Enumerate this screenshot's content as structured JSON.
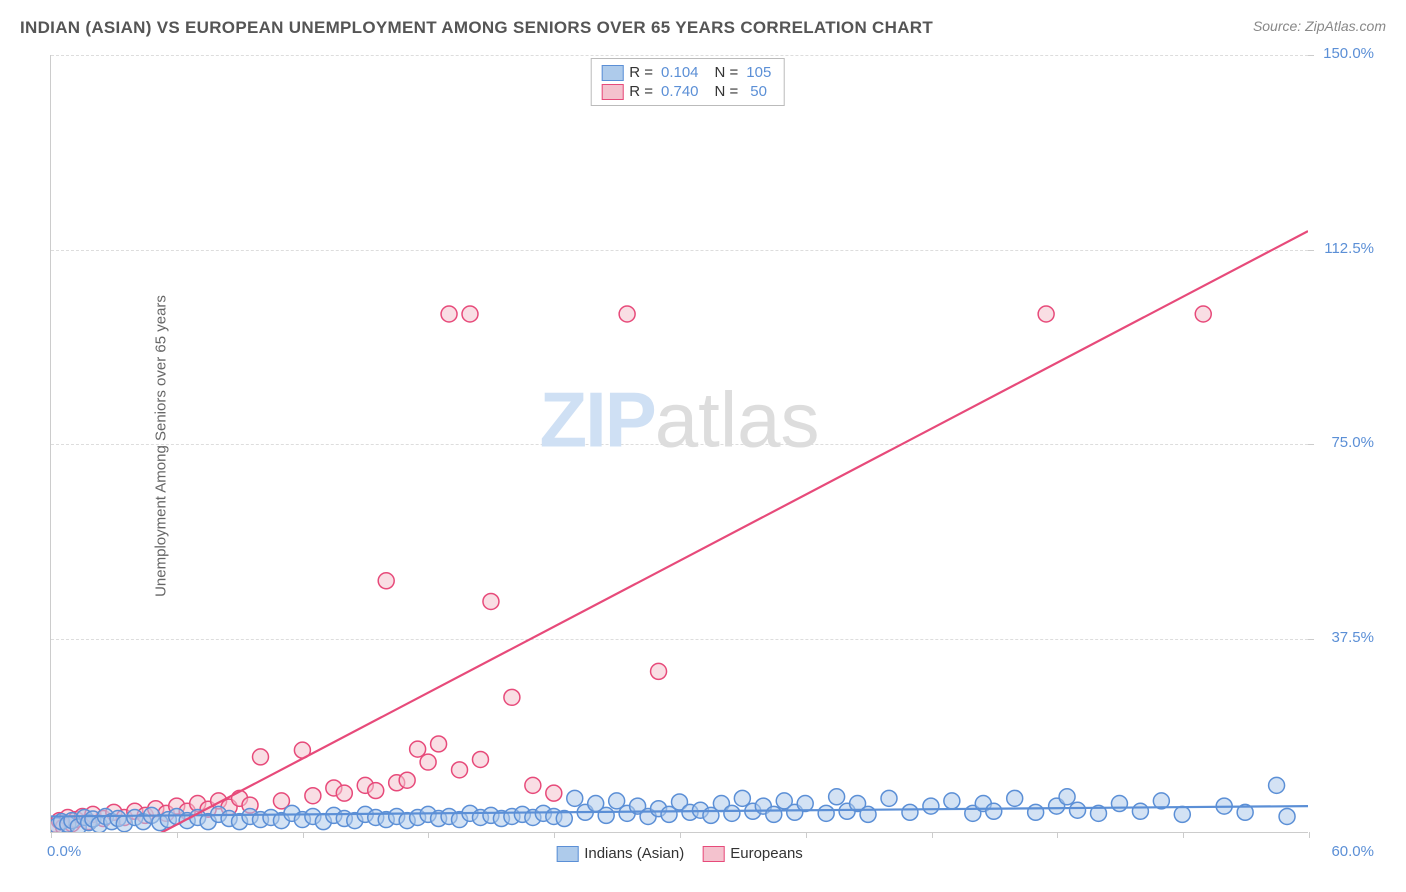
{
  "title": "INDIAN (ASIAN) VS EUROPEAN UNEMPLOYMENT AMONG SENIORS OVER 65 YEARS CORRELATION CHART",
  "source": "Source: ZipAtlas.com",
  "y_axis_label": "Unemployment Among Seniors over 65 years",
  "watermark_bold": "ZIP",
  "watermark_light": "atlas",
  "chart": {
    "type": "scatter",
    "xlim": [
      0,
      60
    ],
    "ylim": [
      0,
      150
    ],
    "x_ticks": [
      0,
      6,
      12,
      18,
      24,
      30,
      36,
      42,
      48,
      54,
      60
    ],
    "x_tick_labels": {
      "0": "0.0%",
      "60": "60.0%"
    },
    "y_ticks": [
      37.5,
      75,
      112.5,
      150
    ],
    "y_tick_labels": {
      "37.5": "37.5%",
      "75": "75.0%",
      "112.5": "112.5%",
      "150": "150.0%"
    },
    "gridlines_y": [
      37.5,
      75.0,
      112.5,
      150.0
    ],
    "background_color": "#ffffff",
    "grid_color": "#dddddd",
    "axis_color": "#cccccc",
    "marker_radius": 8,
    "marker_stroke_width": 1.5,
    "trend_stroke_width": 2.2,
    "series": [
      {
        "name": "Indians (Asian)",
        "fill": "#aecbeb",
        "fill_opacity": 0.55,
        "stroke": "#5b8fd6",
        "R": "0.104",
        "N": "105",
        "trend": {
          "x1": 0,
          "y1": 3.0,
          "x2": 60,
          "y2": 5.0
        },
        "points": [
          [
            0.3,
            1.2
          ],
          [
            0.5,
            2.0
          ],
          [
            0.8,
            1.5
          ],
          [
            1.0,
            2.2
          ],
          [
            1.3,
            1.0
          ],
          [
            1.6,
            2.8
          ],
          [
            1.8,
            1.8
          ],
          [
            2.0,
            2.5
          ],
          [
            2.3,
            1.4
          ],
          [
            2.6,
            3.0
          ],
          [
            2.9,
            2.0
          ],
          [
            3.2,
            2.6
          ],
          [
            3.5,
            1.6
          ],
          [
            4.0,
            2.8
          ],
          [
            4.4,
            2.0
          ],
          [
            4.8,
            3.2
          ],
          [
            5.2,
            1.8
          ],
          [
            5.6,
            2.4
          ],
          [
            6.0,
            3.0
          ],
          [
            6.5,
            2.2
          ],
          [
            7.0,
            2.8
          ],
          [
            7.5,
            2.0
          ],
          [
            8.0,
            3.4
          ],
          [
            8.5,
            2.6
          ],
          [
            9.0,
            2.0
          ],
          [
            9.5,
            3.0
          ],
          [
            10.0,
            2.4
          ],
          [
            10.5,
            2.8
          ],
          [
            11.0,
            2.2
          ],
          [
            11.5,
            3.6
          ],
          [
            12.0,
            2.4
          ],
          [
            12.5,
            3.0
          ],
          [
            13.0,
            2.0
          ],
          [
            13.5,
            3.2
          ],
          [
            14.0,
            2.6
          ],
          [
            14.5,
            2.2
          ],
          [
            15.0,
            3.4
          ],
          [
            15.5,
            2.8
          ],
          [
            16.0,
            2.4
          ],
          [
            16.5,
            3.0
          ],
          [
            17.0,
            2.2
          ],
          [
            17.5,
            2.8
          ],
          [
            18.0,
            3.4
          ],
          [
            18.5,
            2.6
          ],
          [
            19.0,
            3.0
          ],
          [
            19.5,
            2.4
          ],
          [
            20.0,
            3.6
          ],
          [
            20.5,
            2.8
          ],
          [
            21.0,
            3.2
          ],
          [
            21.5,
            2.6
          ],
          [
            22.0,
            3.0
          ],
          [
            22.5,
            3.4
          ],
          [
            23.0,
            2.8
          ],
          [
            23.5,
            3.6
          ],
          [
            24.0,
            3.0
          ],
          [
            24.5,
            2.6
          ],
          [
            25.0,
            6.5
          ],
          [
            25.5,
            3.8
          ],
          [
            26.0,
            5.5
          ],
          [
            26.5,
            3.2
          ],
          [
            27.0,
            6.0
          ],
          [
            27.5,
            3.6
          ],
          [
            28.0,
            5.0
          ],
          [
            28.5,
            3.0
          ],
          [
            29.0,
            4.5
          ],
          [
            29.5,
            3.4
          ],
          [
            30.0,
            5.8
          ],
          [
            30.5,
            3.8
          ],
          [
            31.0,
            4.2
          ],
          [
            31.5,
            3.2
          ],
          [
            32.0,
            5.5
          ],
          [
            32.5,
            3.6
          ],
          [
            33.0,
            6.5
          ],
          [
            33.5,
            4.0
          ],
          [
            34.0,
            5.0
          ],
          [
            34.5,
            3.4
          ],
          [
            35.0,
            6.0
          ],
          [
            35.5,
            3.8
          ],
          [
            36.0,
            5.5
          ],
          [
            37.0,
            3.6
          ],
          [
            37.5,
            6.8
          ],
          [
            38.0,
            4.0
          ],
          [
            38.5,
            5.5
          ],
          [
            39.0,
            3.4
          ],
          [
            40.0,
            6.5
          ],
          [
            41.0,
            3.8
          ],
          [
            42.0,
            5.0
          ],
          [
            43.0,
            6.0
          ],
          [
            44.0,
            3.6
          ],
          [
            44.5,
            5.5
          ],
          [
            45.0,
            4.0
          ],
          [
            46.0,
            6.5
          ],
          [
            47.0,
            3.8
          ],
          [
            48.0,
            5.0
          ],
          [
            48.5,
            6.8
          ],
          [
            49.0,
            4.2
          ],
          [
            50.0,
            3.6
          ],
          [
            51.0,
            5.5
          ],
          [
            52.0,
            4.0
          ],
          [
            53.0,
            6.0
          ],
          [
            54.0,
            3.4
          ],
          [
            56.0,
            5.0
          ],
          [
            57.0,
            3.8
          ],
          [
            58.5,
            9.0
          ],
          [
            59.0,
            3.0
          ]
        ]
      },
      {
        "name": "Europeans",
        "fill": "#f4c2ce",
        "fill_opacity": 0.55,
        "stroke": "#e74a7a",
        "R": "0.740",
        "N": "50",
        "trend": {
          "x1": 2.5,
          "y1": -6,
          "x2": 60,
          "y2": 116
        },
        "points": [
          [
            0.2,
            1.5
          ],
          [
            0.4,
            2.2
          ],
          [
            0.6,
            1.0
          ],
          [
            0.8,
            2.8
          ],
          [
            1.0,
            1.6
          ],
          [
            1.2,
            2.4
          ],
          [
            1.5,
            3.0
          ],
          [
            1.8,
            2.0
          ],
          [
            2.0,
            3.4
          ],
          [
            2.5,
            2.6
          ],
          [
            3.0,
            3.8
          ],
          [
            3.5,
            2.8
          ],
          [
            4.0,
            4.0
          ],
          [
            4.5,
            3.2
          ],
          [
            5.0,
            4.5
          ],
          [
            5.5,
            3.6
          ],
          [
            6.0,
            5.0
          ],
          [
            6.5,
            4.0
          ],
          [
            7.0,
            5.5
          ],
          [
            7.5,
            4.4
          ],
          [
            8.0,
            6.0
          ],
          [
            8.5,
            4.8
          ],
          [
            9.0,
            6.5
          ],
          [
            9.5,
            5.2
          ],
          [
            10.0,
            14.5
          ],
          [
            11.0,
            6.0
          ],
          [
            12.0,
            15.8
          ],
          [
            12.5,
            7.0
          ],
          [
            13.5,
            8.5
          ],
          [
            14.0,
            7.5
          ],
          [
            15.0,
            9.0
          ],
          [
            15.5,
            8.0
          ],
          [
            16.0,
            48.5
          ],
          [
            16.5,
            9.5
          ],
          [
            17.0,
            10.0
          ],
          [
            17.5,
            16.0
          ],
          [
            18.0,
            13.5
          ],
          [
            18.5,
            17.0
          ],
          [
            19.0,
            100.0
          ],
          [
            19.5,
            12.0
          ],
          [
            20.0,
            100.0
          ],
          [
            20.5,
            14.0
          ],
          [
            21.0,
            44.5
          ],
          [
            22.0,
            26.0
          ],
          [
            23.0,
            9.0
          ],
          [
            24.0,
            7.5
          ],
          [
            27.5,
            100.0
          ],
          [
            29.0,
            31.0
          ],
          [
            47.5,
            100.0
          ],
          [
            55.0,
            100.0
          ]
        ]
      }
    ]
  },
  "legend_top_labels": {
    "R": "R =",
    "N": "N ="
  },
  "colors": {
    "tick_label": "#5b8fd6",
    "title": "#555555",
    "source": "#888888",
    "axis_label": "#666666"
  }
}
